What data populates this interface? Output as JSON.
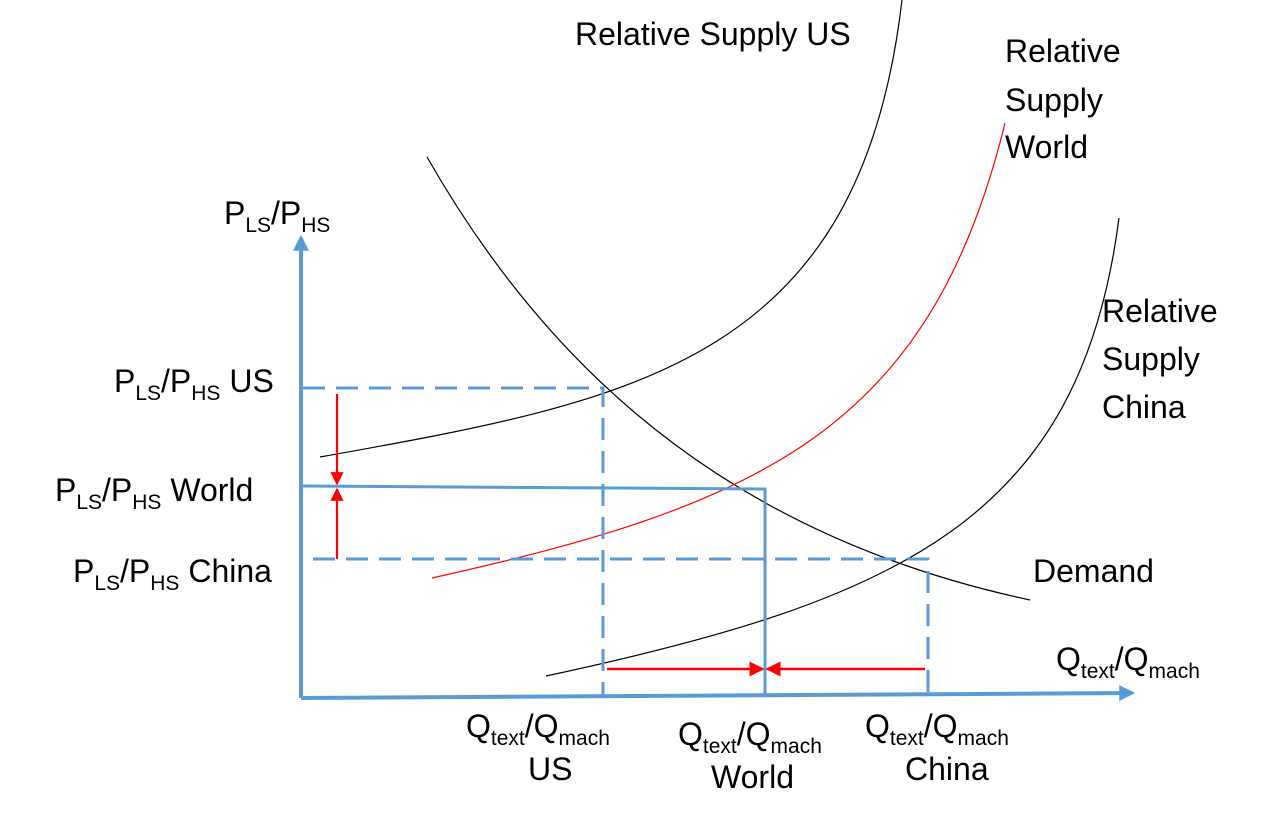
{
  "colors": {
    "axis": "#5b9bd5",
    "curve": "#000000",
    "world_curve": "#ff0000",
    "arrow": "#ff0000",
    "background": "#ffffff"
  },
  "y_axis": {
    "label": {
      "main1": "P",
      "sub1": "LS",
      "main2": "/P",
      "sub2": "HS"
    }
  },
  "x_axis": {
    "label": {
      "main1": "Q",
      "sub1": "text",
      "main2": "/Q",
      "sub2": "mach"
    }
  },
  "curves": {
    "supply_us": {
      "line1": "Relative Supply US"
    },
    "supply_world": {
      "line1": "Relative",
      "line2": "Supply",
      "line3": "World"
    },
    "supply_china": {
      "line1": "Relative",
      "line2": "Supply",
      "line3": "China"
    },
    "demand": {
      "line1": "Demand"
    }
  },
  "price_ticks": {
    "us": {
      "main1": "P",
      "sub1": "LS",
      "main2": "/P",
      "sub2": "HS",
      "suffix": " US"
    },
    "world": {
      "main1": "P",
      "sub1": "LS",
      "main2": "/P",
      "sub2": "HS",
      "suffix": " World"
    },
    "china": {
      "main1": "P",
      "sub1": "LS",
      "main2": "/P",
      "sub2": "HS",
      "suffix": " China"
    }
  },
  "quantity_ticks": {
    "us": {
      "main1": "Q",
      "sub1": "text",
      "main2": "/Q",
      "sub2": "mach",
      "line2": "US"
    },
    "world": {
      "main1": "Q",
      "sub1": "text",
      "main2": "/Q",
      "sub2": "mach",
      "line2": "World"
    },
    "china": {
      "main1": "Q",
      "sub1": "text",
      "main2": "/Q",
      "sub2": "mach",
      "line2": "China"
    }
  }
}
